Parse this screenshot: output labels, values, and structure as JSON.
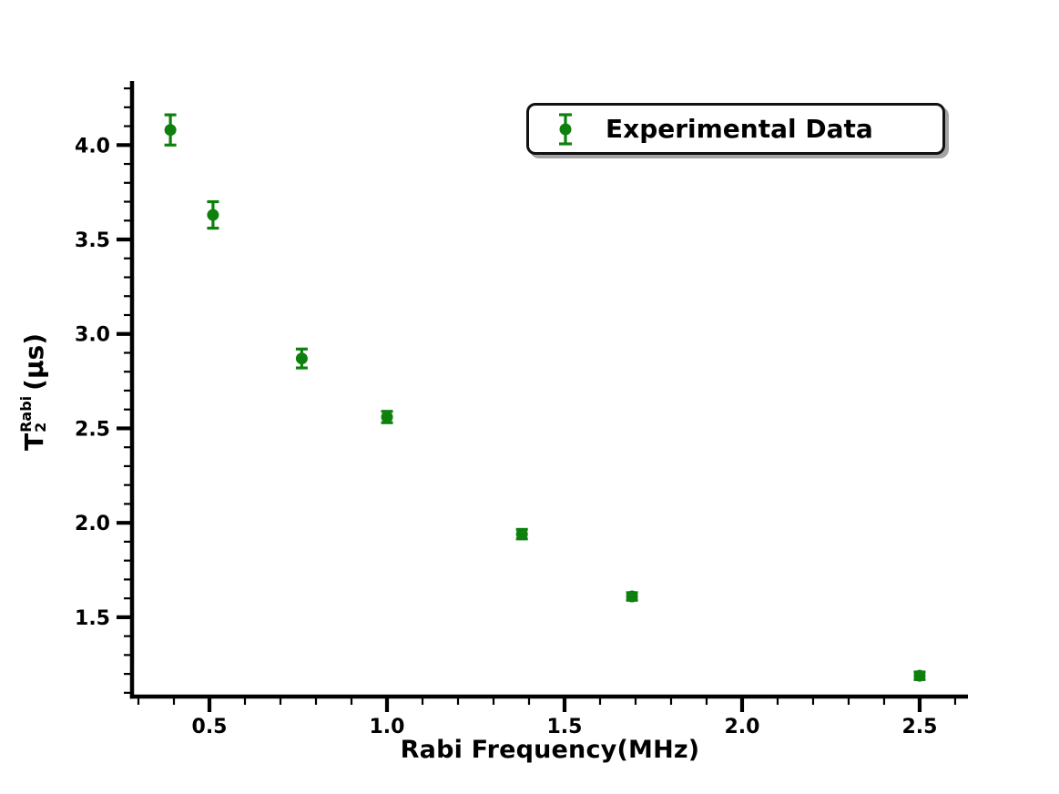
{
  "figure": {
    "background": "#ffffff",
    "axis_color": "#000000"
  },
  "axis_labels": {
    "xlabel": "Rabi Frequency(MHz)",
    "ylabel_base": "T",
    "ylabel_sup": "Rabi",
    "ylabel_sub": "2",
    "ylabel_unit": "(μs)"
  },
  "legend": {
    "label": "Experimental Data",
    "position": "upper right"
  },
  "chart_data": {
    "type": "scatter",
    "title": "",
    "xlabel": "Rabi Frequency(MHz)",
    "ylabel": "T2^Rabi (μs)",
    "legend_entries": [
      "Experimental Data"
    ],
    "legend_position": "upper right",
    "grid": false,
    "marker_color": "#0e800e",
    "axis_color": "#000000",
    "xlim": [
      0.282,
      2.636
    ],
    "ylim": [
      1.08,
      4.31
    ],
    "xticks": [
      0.5,
      1.0,
      1.5,
      2.0,
      2.5
    ],
    "yticks": [
      1.5,
      2.0,
      2.5,
      3.0,
      3.5,
      4.0
    ],
    "minor_tick_step": 0.1,
    "series": [
      {
        "name": "Experimental Data",
        "x": [
          0.39,
          0.51,
          0.76,
          1.0,
          1.38,
          1.69,
          2.5
        ],
        "y": [
          4.08,
          3.63,
          2.87,
          2.56,
          1.94,
          1.61,
          1.19
        ],
        "yerr": [
          0.08,
          0.07,
          0.05,
          0.03,
          0.025,
          0.02,
          0.02
        ]
      }
    ]
  }
}
